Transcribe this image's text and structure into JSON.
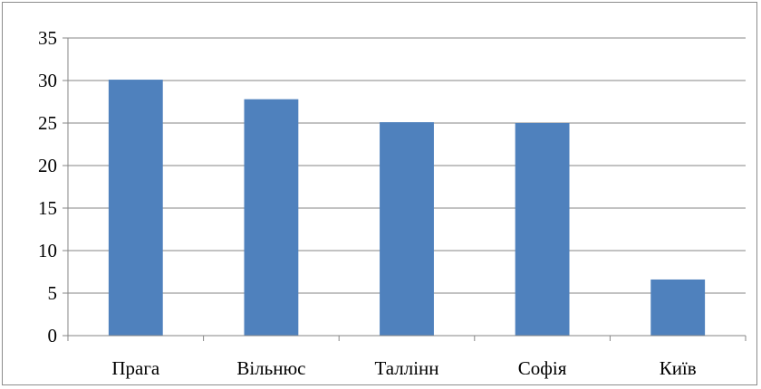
{
  "chart_data": {
    "type": "bar",
    "categories": [
      "Прага",
      "Вільнюс",
      "Таллінн",
      "Софія",
      "Київ"
    ],
    "values": [
      30.1,
      27.8,
      25.1,
      25.0,
      6.6
    ],
    "title": "",
    "xlabel": "",
    "ylabel": "",
    "ylim": [
      0,
      35
    ],
    "yticks": [
      "0",
      "5",
      "10",
      "15",
      "20",
      "25",
      "30",
      "35"
    ],
    "grid": true,
    "legend": "none",
    "bar_color": "#4f81bd",
    "grid_color": "#868686"
  }
}
